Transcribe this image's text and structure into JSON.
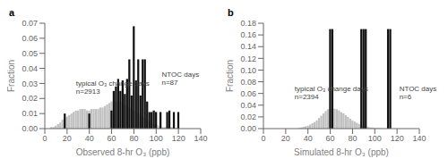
{
  "chart_data": [
    {
      "type": "bar",
      "title": "a",
      "xlabel": "Observed 8-hr O₃ (ppb)",
      "ylabel": "Fraction",
      "xlim": [
        0,
        140
      ],
      "ylim": [
        0,
        0.07
      ],
      "xticks": [
        0,
        20,
        40,
        60,
        80,
        100,
        120,
        140
      ],
      "yticks": [
        {
          "value": 0,
          "label": "0.00"
        },
        0.01,
        0.02,
        0.03,
        0.04,
        0.05,
        0.06,
        0.07
      ],
      "grid": false,
      "bin_width": 2,
      "series": [
        {
          "color": "#c0c0c0",
          "x": [
            6,
            8,
            10,
            12,
            14,
            16,
            18,
            20,
            22,
            24,
            26,
            28,
            30,
            32,
            34,
            36,
            38,
            40,
            42,
            44,
            46,
            48,
            50,
            52,
            54,
            56,
            58,
            60,
            62,
            64,
            66,
            68,
            70,
            72,
            74,
            76,
            78,
            80,
            82,
            84,
            86,
            88,
            90,
            92,
            94,
            96,
            98,
            100,
            102,
            104,
            106,
            108,
            110,
            112,
            114,
            116,
            118,
            120,
            122,
            124,
            126,
            128,
            130
          ],
          "values": [
            0.001,
            0.001,
            0.002,
            0.003,
            0.004,
            0.006,
            0.007,
            0.008,
            0.009,
            0.01,
            0.011,
            0.012,
            0.012,
            0.013,
            0.013,
            0.013,
            0.012,
            0.012,
            0.013,
            0.013,
            0.013,
            0.013,
            0.014,
            0.014,
            0.015,
            0.016,
            0.017,
            0.018,
            0.018,
            0.018,
            0.018,
            0.018,
            0.017,
            0.016,
            0.015,
            0.014,
            0.013,
            0.012,
            0.011,
            0.01,
            0.009,
            0.008,
            0.007,
            0.006,
            0.005,
            0.004,
            0.003,
            0.003,
            0.002,
            0.002,
            0.001,
            0.001,
            0.001,
            0.001,
            0.001,
            0.0005,
            0.0005,
            0.0005,
            0.0,
            0.0,
            0.0,
            0.0,
            0.0
          ]
        },
        {
          "color": "#111111",
          "x": [
            18,
            40,
            60,
            62,
            64,
            66,
            68,
            70,
            72,
            74,
            76,
            78,
            80,
            82,
            84,
            86,
            88,
            90,
            92,
            94,
            96,
            98,
            100,
            104,
            110,
            112,
            116,
            120
          ],
          "values": [
            0.01,
            0.01,
            0.012,
            0.025,
            0.028,
            0.033,
            0.025,
            0.032,
            0.023,
            0.033,
            0.046,
            0.022,
            0.068,
            0.032,
            0.046,
            0.022,
            0.046,
            0.046,
            0.018,
            0.011,
            0.011,
            0.012,
            0.011,
            0.011,
            0.011,
            0.012,
            0.011,
            0.011
          ]
        }
      ],
      "annotations": [
        {
          "text": "typical O₃ change days\nn=2913",
          "x": 28,
          "y": 0.027,
          "color": "#444444"
        },
        {
          "text": "NTOC days\nn=87",
          "x": 105,
          "y": 0.033,
          "color": "#444444"
        }
      ]
    },
    {
      "type": "bar",
      "title": "b",
      "xlabel": "Simulated 8-hr O₃ (ppb)",
      "ylabel": "Fraction",
      "xlim": [
        0,
        140
      ],
      "ylim": [
        0,
        0.18
      ],
      "xticks": [
        0,
        20,
        40,
        60,
        80,
        100,
        120,
        140
      ],
      "yticks": [
        {
          "value": 0,
          "label": "0.00"
        },
        0.02,
        0.04,
        0.06,
        0.08,
        {
          "value": 0.1,
          "label": "0.10"
        },
        0.12,
        0.14,
        0.16,
        0.18
      ],
      "grid": false,
      "bin_width": 2,
      "series": [
        {
          "color": "#c0c0c0",
          "x": [
            32,
            34,
            36,
            38,
            40,
            42,
            44,
            46,
            48,
            50,
            52,
            54,
            56,
            58,
            60,
            62,
            64,
            66,
            68,
            70,
            72,
            74,
            76,
            78,
            80,
            82,
            84,
            86,
            88,
            90,
            92,
            94,
            96,
            98,
            100,
            102,
            104,
            106
          ],
          "values": [
            0.001,
            0.002,
            0.003,
            0.004,
            0.005,
            0.007,
            0.009,
            0.011,
            0.014,
            0.018,
            0.022,
            0.026,
            0.03,
            0.033,
            0.034,
            0.035,
            0.034,
            0.033,
            0.031,
            0.028,
            0.026,
            0.023,
            0.02,
            0.017,
            0.014,
            0.012,
            0.01,
            0.008,
            0.006,
            0.005,
            0.004,
            0.003,
            0.002,
            0.002,
            0.001,
            0.001,
            0.001,
            0.0005
          ]
        },
        {
          "color": "#111111",
          "x": [
            60,
            62,
            88,
            90,
            92,
            112,
            114
          ],
          "values": [
            0.17,
            0.17,
            0.17,
            0.17,
            0.17,
            0.17,
            0.17
          ]
        }
      ],
      "annotations": [
        {
          "text": "typical O₃ change days\nn=2394",
          "x": 28,
          "y": 0.06,
          "color": "#444444"
        },
        {
          "text": "NTOC days\nn=6",
          "x": 122,
          "y": 0.06,
          "color": "#444444"
        }
      ]
    }
  ]
}
